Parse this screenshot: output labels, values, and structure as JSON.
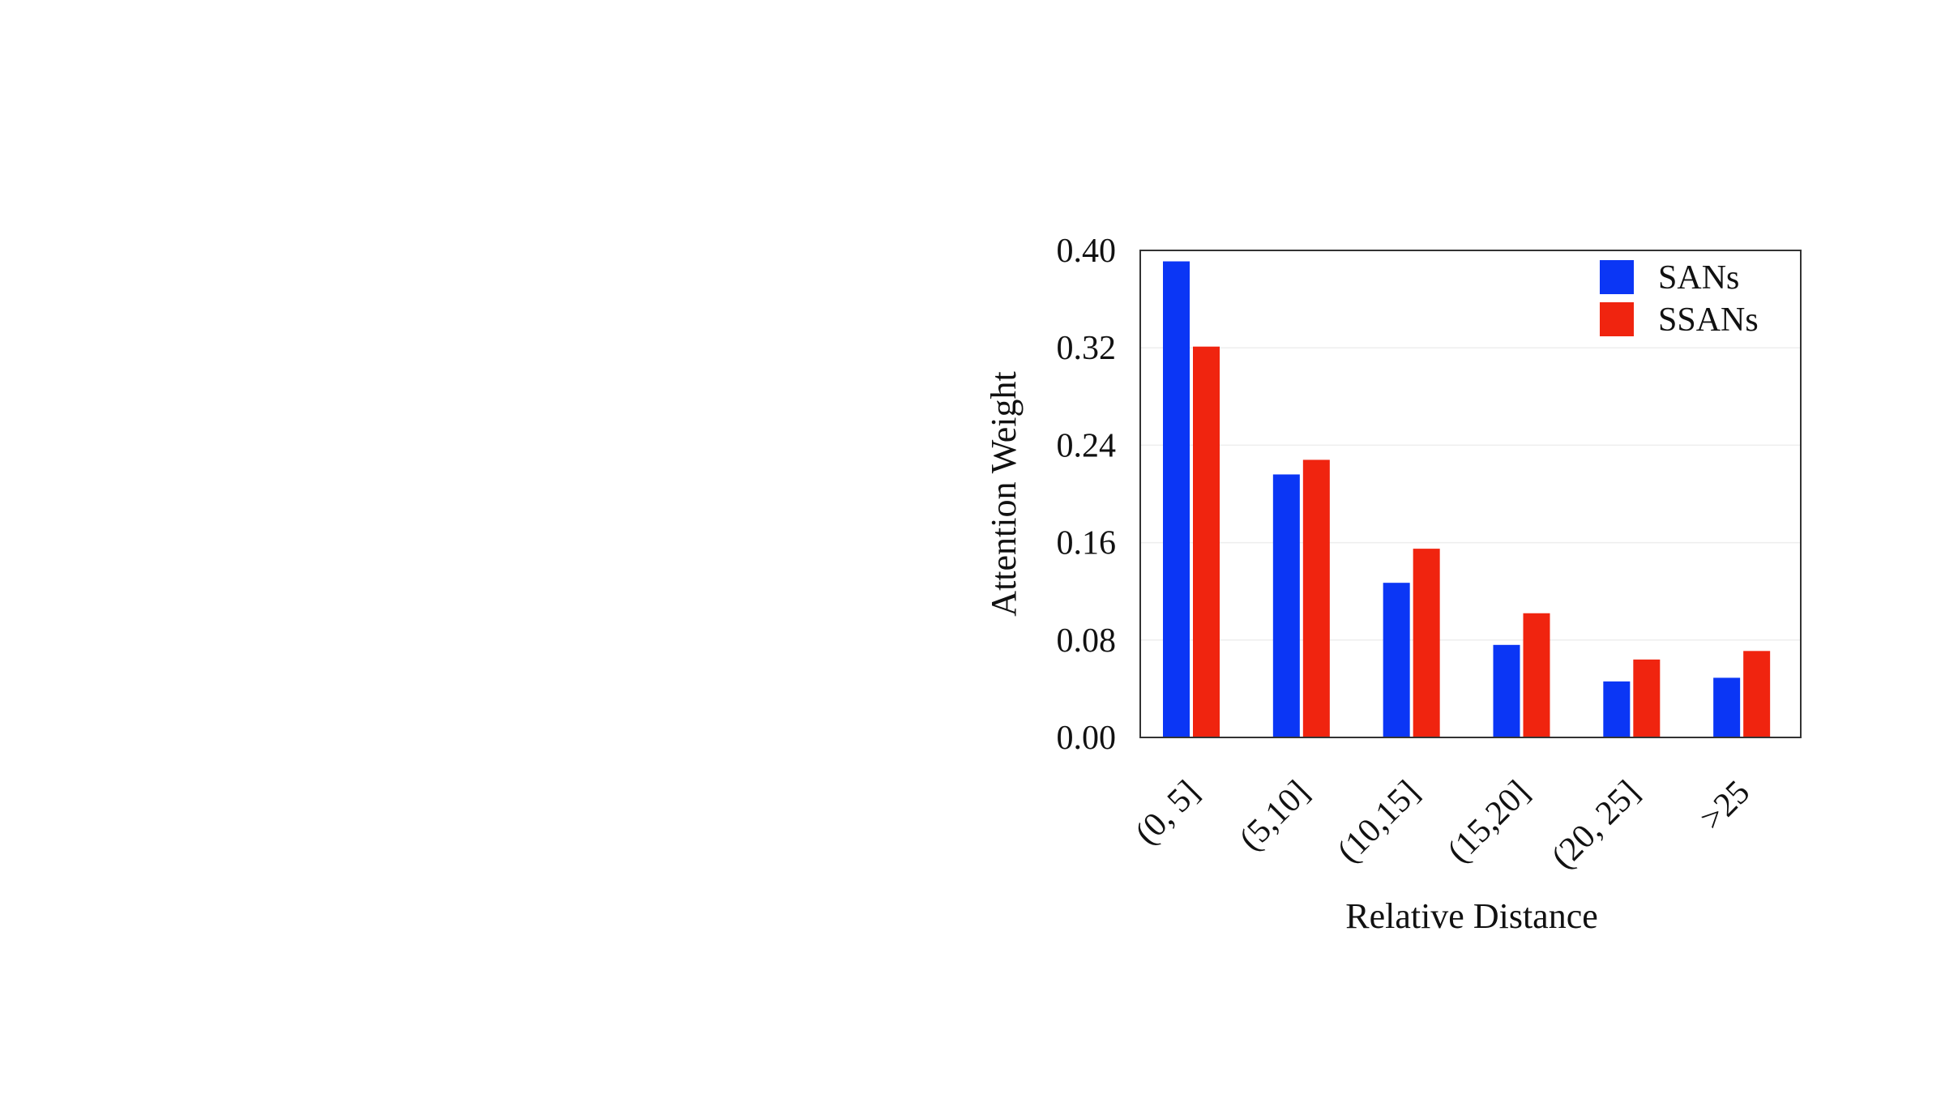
{
  "chart_data": {
    "type": "bar",
    "categories": [
      "(0, 5]",
      "(5,10]",
      "(10,15]",
      "(15,20]",
      "(20, 25]",
      ">25"
    ],
    "series": [
      {
        "name": "SANs",
        "color": "#0b36f5",
        "values": [
          0.391,
          0.216,
          0.127,
          0.076,
          0.046,
          0.049
        ]
      },
      {
        "name": "SSANs",
        "color": "#f0240f",
        "values": [
          0.321,
          0.228,
          0.155,
          0.102,
          0.064,
          0.071
        ]
      }
    ],
    "xlabel": "Relative Distance",
    "ylabel": "Attention Weight",
    "ylim": [
      0,
      0.4
    ],
    "yticks": [
      "0.00",
      "0.08",
      "0.16",
      "0.24",
      "0.32",
      "0.40"
    ],
    "grid": "horizontal, faint",
    "legend_position": "top-right"
  }
}
